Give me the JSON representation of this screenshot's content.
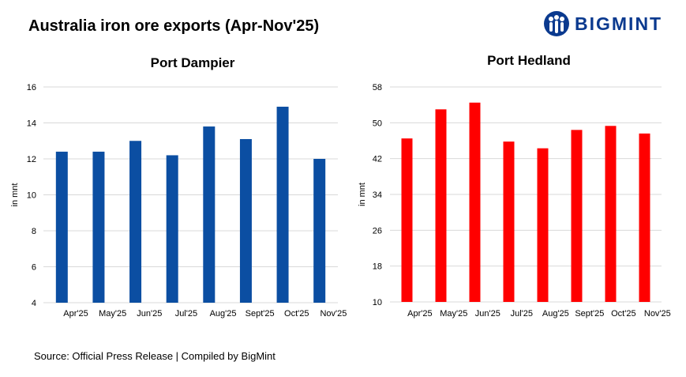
{
  "title": "Australia iron ore exports (Apr-Nov'25)",
  "brand": {
    "name": "BIGMINT",
    "color": "#0b3a8f",
    "icon": "people-logo-icon"
  },
  "source": "Source:  Official Press Release  | Compiled  by BigMint",
  "chart_data": [
    {
      "type": "bar",
      "title": "Port Dampier",
      "ylabel": "in mnt",
      "xlabel": "",
      "categories": [
        "Apr'25",
        "May'25",
        "Jun'25",
        "Jul'25",
        "Aug'25",
        "Sept'25",
        "Oct'25",
        "Nov'25"
      ],
      "values": [
        12.4,
        12.4,
        13.0,
        12.2,
        13.8,
        13.1,
        14.9,
        12.0
      ],
      "ylim": [
        4,
        16
      ],
      "yticks": [
        4,
        6,
        8,
        10,
        12,
        14,
        16
      ],
      "color": "#0b4ea2",
      "grid": true,
      "legend": "none"
    },
    {
      "type": "bar",
      "title": "Port Hedland",
      "ylabel": "in mnt",
      "xlabel": "",
      "categories": [
        "Apr'25",
        "May'25",
        "Jun'25",
        "Jul'25",
        "Aug'25",
        "Sept'25",
        "Oct'25",
        "Nov'25"
      ],
      "values": [
        46.5,
        53.0,
        54.5,
        45.8,
        44.3,
        48.4,
        49.3,
        47.6
      ],
      "ylim": [
        10,
        58
      ],
      "yticks": [
        10,
        18,
        26,
        34,
        42,
        50,
        58
      ],
      "color": "#ff0000",
      "grid": true,
      "legend": "none"
    }
  ]
}
